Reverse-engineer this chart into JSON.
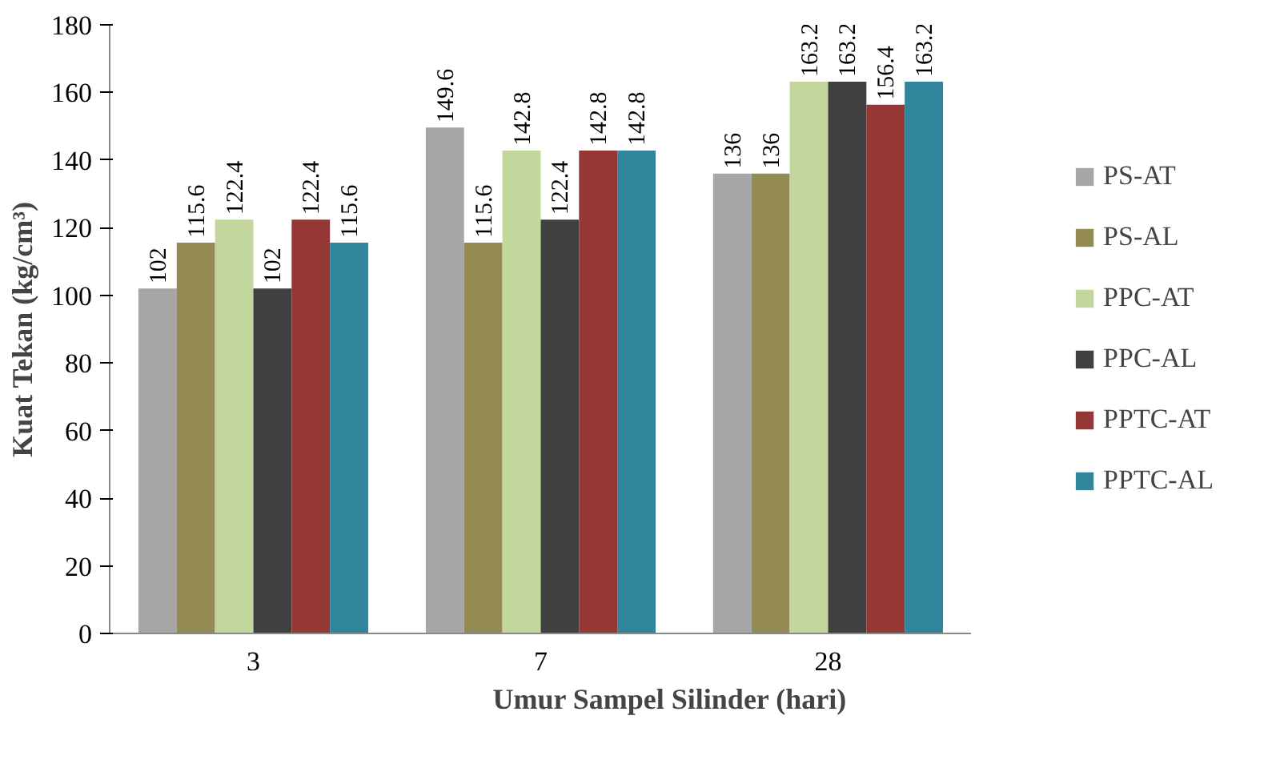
{
  "chart_data": {
    "type": "bar",
    "xlabel": "Umur Sampel Silinder (hari)",
    "ylabel": "Kuat Tekan (kg/cm³)",
    "categories": [
      "3",
      "7",
      "28"
    ],
    "series": [
      {
        "name": "PS-AT",
        "color": "#a6a6a6",
        "values": [
          102,
          149.6,
          136
        ]
      },
      {
        "name": "PS-AL",
        "color": "#948a54",
        "values": [
          115.6,
          115.6,
          136
        ]
      },
      {
        "name": "PPC-AT",
        "color": "#c3d69b",
        "values": [
          122.4,
          142.8,
          163.2
        ]
      },
      {
        "name": "PPC-AL",
        "color": "#404040",
        "values": [
          102,
          122.4,
          163.2
        ]
      },
      {
        "name": "PPTC-AT",
        "color": "#953735",
        "values": [
          122.4,
          142.8,
          156.4
        ]
      },
      {
        "name": "PPTC-AL",
        "color": "#31859c",
        "values": [
          115.6,
          142.8,
          163.2
        ]
      }
    ],
    "ylim": [
      0,
      180
    ],
    "yticks": [
      0,
      20,
      40,
      60,
      80,
      100,
      120,
      140,
      160,
      180
    ],
    "data_labels": true,
    "grid": false,
    "legend": "right"
  }
}
